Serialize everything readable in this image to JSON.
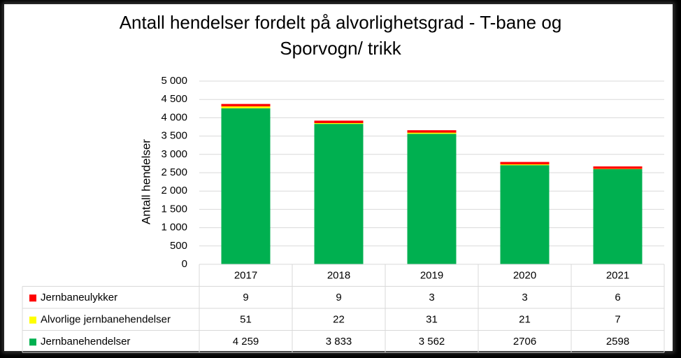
{
  "chart_data": {
    "type": "bar",
    "stacked": true,
    "title_line1": "Antall hendelser fordelt på alvorlighetsgrad - T-bane og",
    "title_line2": "Sporvogn/ trikk",
    "ylabel": "Antall hendelser",
    "ylim": [
      0,
      5000
    ],
    "yticks": [
      "0",
      "500",
      "1 000",
      "1 500",
      "2 000",
      "2 500",
      "3 000",
      "3 500",
      "4 000",
      "4 500",
      "5 000"
    ],
    "ytick_values": [
      0,
      500,
      1000,
      1500,
      2000,
      2500,
      3000,
      3500,
      4000,
      4500,
      5000
    ],
    "grid": true,
    "categories": [
      "2017",
      "2018",
      "2019",
      "2020",
      "2021"
    ],
    "series": [
      {
        "name": "Jernbanehendelser",
        "color": "#00b050",
        "values": [
          4259,
          3833,
          3562,
          2706,
          2598
        ],
        "labels": [
          "4 259",
          "3 833",
          "3 562",
          "2706",
          "2598"
        ]
      },
      {
        "name": "Alvorlige jernbanehendelser",
        "color": "#ffff00",
        "values": [
          51,
          22,
          31,
          21,
          7
        ],
        "labels": [
          "51",
          "22",
          "31",
          "21",
          "7"
        ]
      },
      {
        "name": "Jernbaneulykker",
        "color": "#ff0000",
        "values": [
          9,
          9,
          3,
          3,
          6
        ],
        "labels": [
          "9",
          "9",
          "3",
          "3",
          "6"
        ]
      }
    ],
    "table_row_order": [
      2,
      1,
      0
    ]
  }
}
